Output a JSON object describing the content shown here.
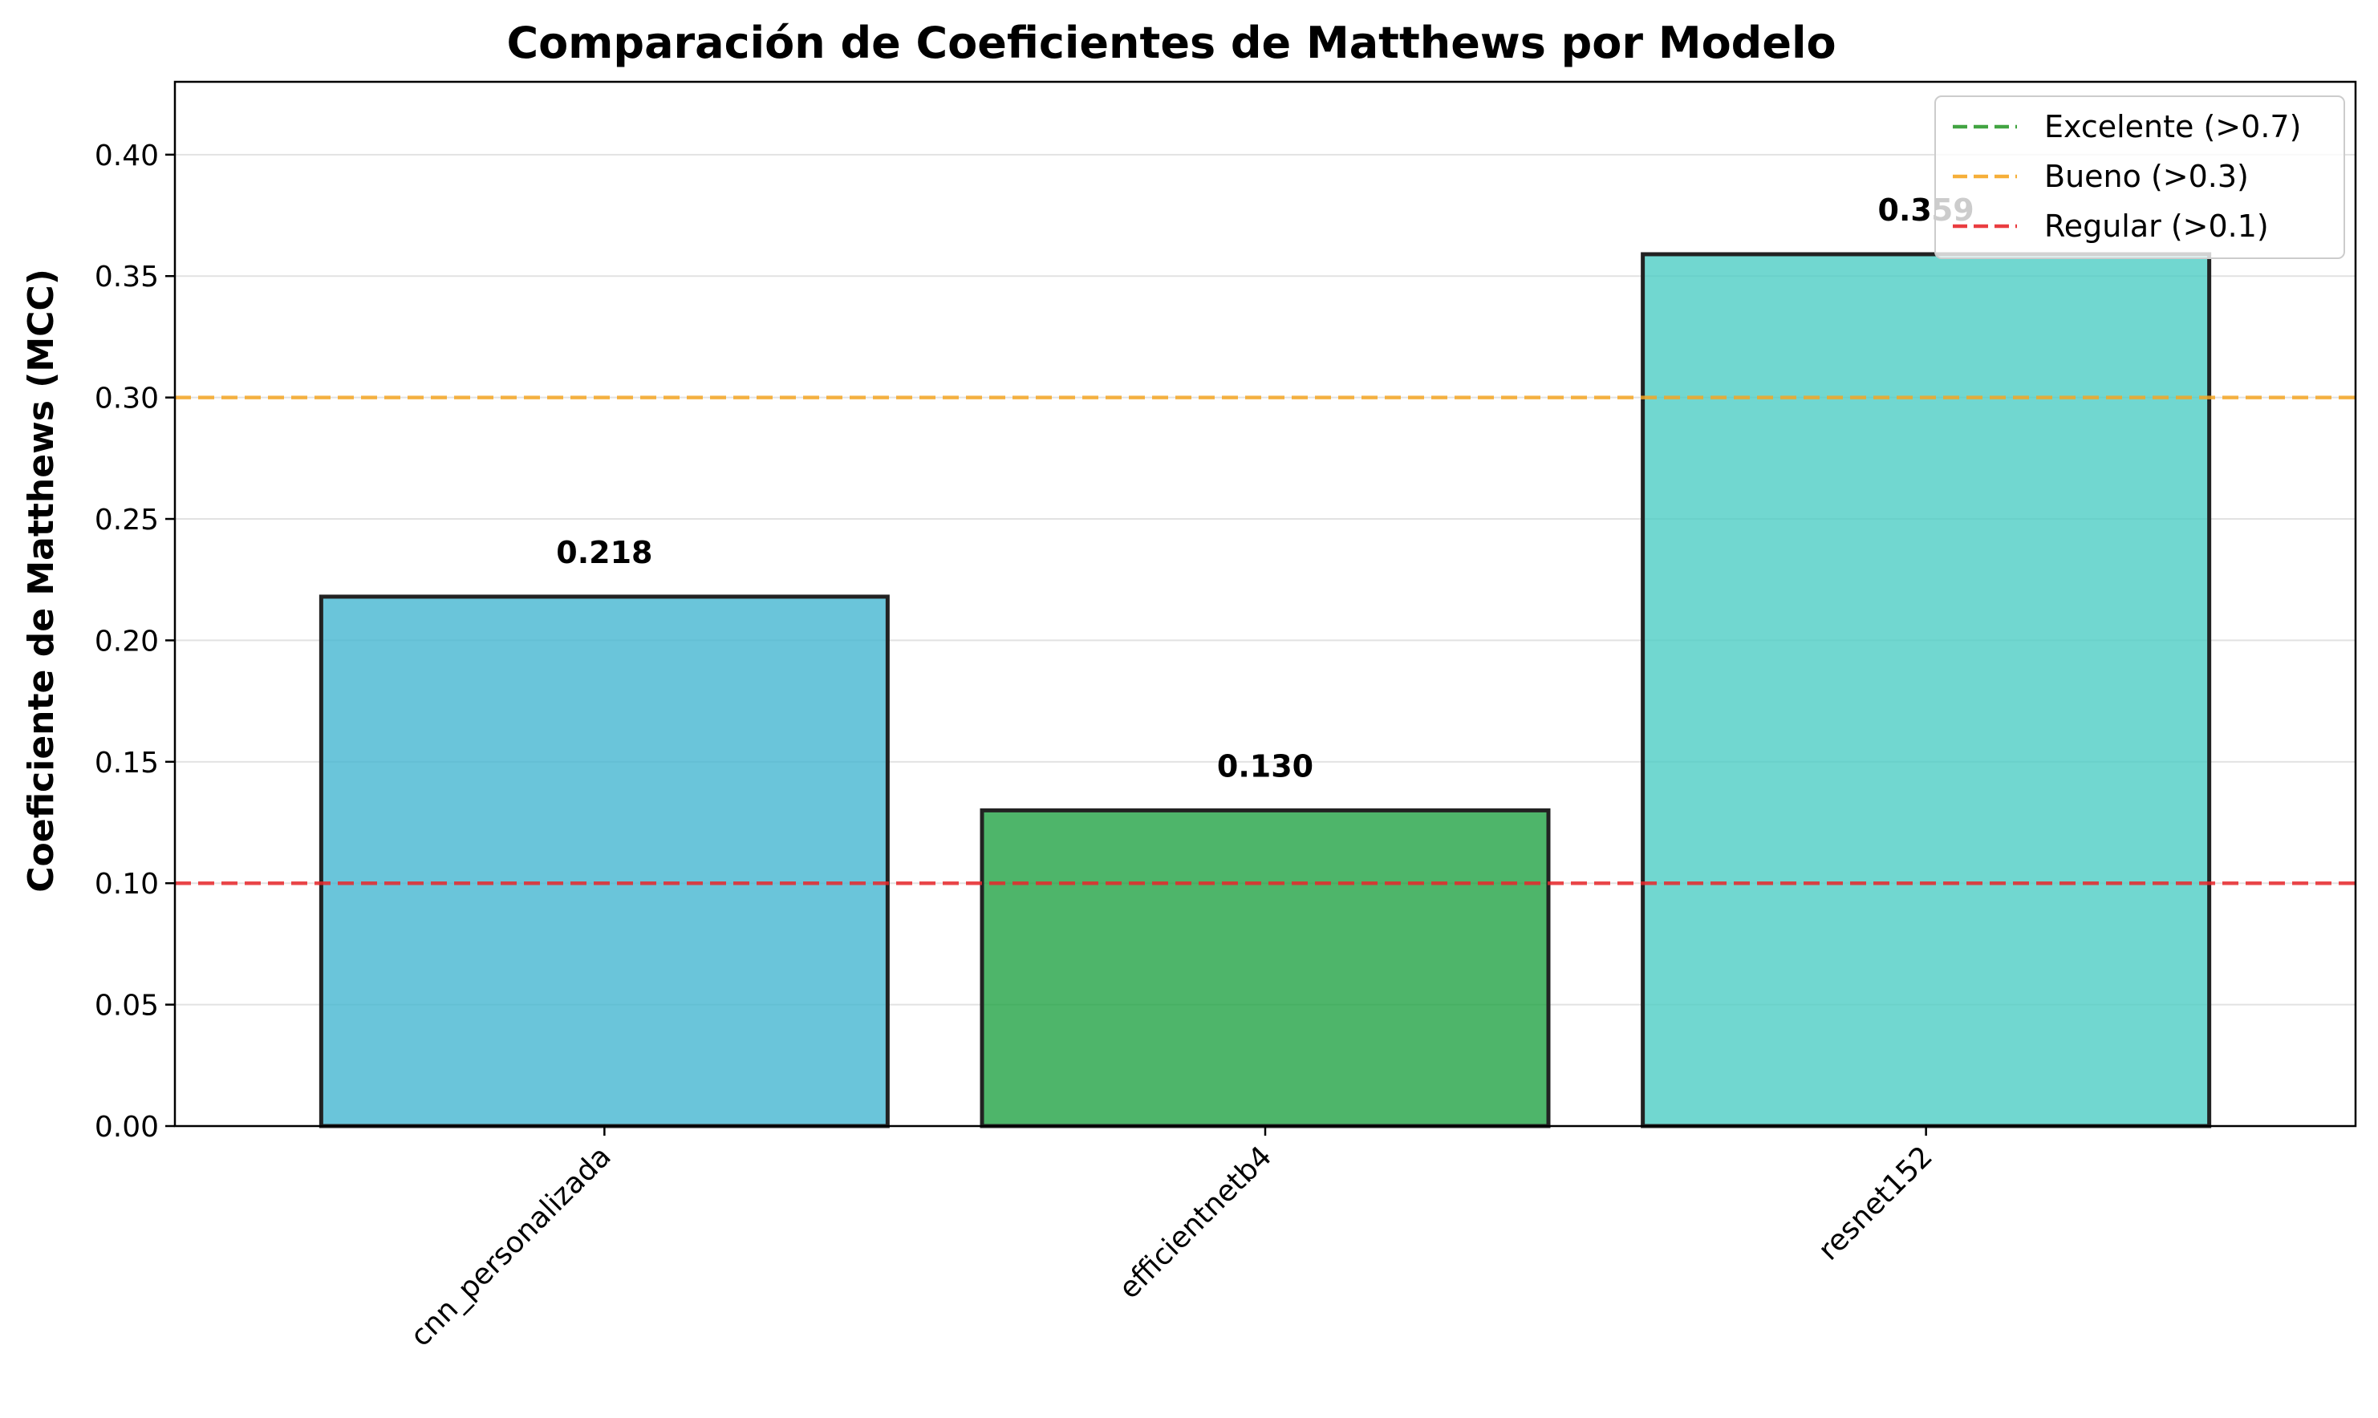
{
  "chart_data": {
    "type": "bar",
    "title": "Comparación de Coeficientes de Matthews por Modelo",
    "xlabel": "",
    "ylabel": "Coeficiente de Matthews (MCC)",
    "categories": [
      "cnn_personalizada",
      "efficientnetb4",
      "resnet152"
    ],
    "values": [
      0.218,
      0.13,
      0.359
    ],
    "value_labels": [
      "0.218",
      "0.130",
      "0.359"
    ],
    "bar_colors": [
      "#45B7D1",
      "#22A245",
      "#4ECDC4"
    ],
    "ylim": [
      0,
      0.43
    ],
    "yticks": [
      0.0,
      0.05,
      0.1,
      0.15,
      0.2,
      0.25,
      0.3,
      0.35,
      0.4
    ],
    "ytick_labels": [
      "0.00",
      "0.05",
      "0.10",
      "0.15",
      "0.20",
      "0.25",
      "0.30",
      "0.35",
      "0.40"
    ],
    "grid": "horizontal",
    "legend_position": "top-right",
    "reference_lines": [
      {
        "label": "Excelente (>0.7)",
        "value": 0.7,
        "color": "#2E9A2E"
      },
      {
        "label": "Bueno (>0.3)",
        "value": 0.3,
        "color": "#F5A623"
      },
      {
        "label": "Regular (>0.1)",
        "value": 0.1,
        "color": "#E8282B"
      }
    ]
  }
}
